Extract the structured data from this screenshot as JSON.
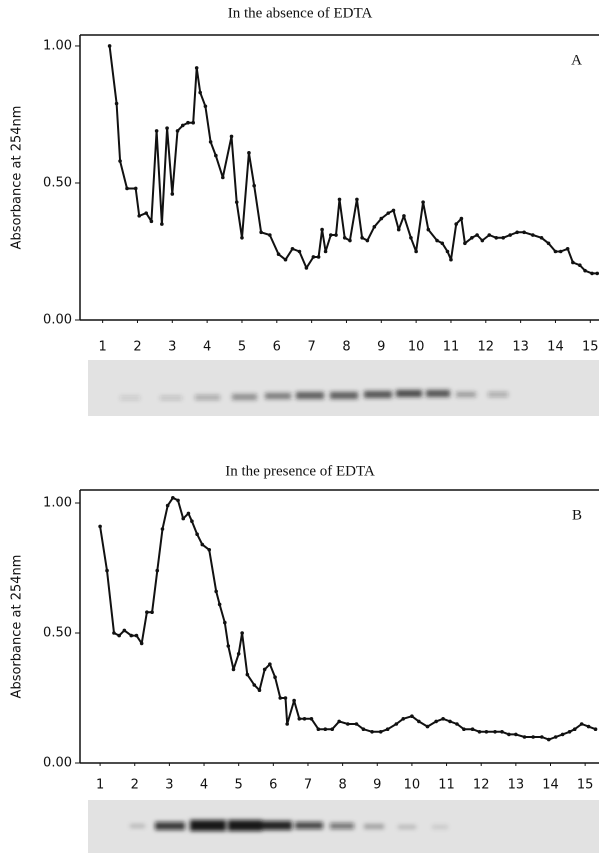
{
  "chart_data": [
    {
      "type": "line",
      "title": "In the absence of EDTA",
      "annotation": "A",
      "y_label": "Absorbance at 254nm",
      "x": [
        1.2,
        1.4,
        1.5,
        1.7,
        1.95,
        2.05,
        2.25,
        2.4,
        2.55,
        2.7,
        2.85,
        3.0,
        3.15,
        3.3,
        3.45,
        3.6,
        3.7,
        3.8,
        3.95,
        4.1,
        4.25,
        4.45,
        4.7,
        4.85,
        5.0,
        5.2,
        5.35,
        5.55,
        5.8,
        6.05,
        6.25,
        6.45,
        6.65,
        6.85,
        7.05,
        7.2,
        7.3,
        7.4,
        7.55,
        7.7,
        7.8,
        7.95,
        8.1,
        8.3,
        8.45,
        8.6,
        8.8,
        9.0,
        9.2,
        9.35,
        9.5,
        9.65,
        9.85,
        10.0,
        10.2,
        10.35,
        10.6,
        10.75,
        10.9,
        11.0,
        11.15,
        11.3,
        11.4,
        11.6,
        11.75,
        11.9,
        12.1,
        12.3,
        12.5,
        12.7,
        12.9,
        13.1,
        13.35,
        13.6,
        13.8,
        14.0,
        14.15,
        14.35,
        14.5,
        14.7,
        14.85,
        15.05,
        15.2
      ],
      "values": [
        1.0,
        0.79,
        0.58,
        0.48,
        0.48,
        0.38,
        0.39,
        0.36,
        0.69,
        0.35,
        0.7,
        0.46,
        0.69,
        0.71,
        0.72,
        0.72,
        0.92,
        0.83,
        0.78,
        0.65,
        0.6,
        0.52,
        0.67,
        0.43,
        0.3,
        0.61,
        0.49,
        0.32,
        0.31,
        0.24,
        0.22,
        0.26,
        0.25,
        0.19,
        0.23,
        0.23,
        0.33,
        0.25,
        0.31,
        0.31,
        0.44,
        0.3,
        0.29,
        0.44,
        0.3,
        0.29,
        0.34,
        0.37,
        0.39,
        0.4,
        0.33,
        0.38,
        0.3,
        0.25,
        0.43,
        0.33,
        0.29,
        0.28,
        0.25,
        0.22,
        0.35,
        0.37,
        0.28,
        0.3,
        0.31,
        0.29,
        0.31,
        0.3,
        0.3,
        0.31,
        0.32,
        0.32,
        0.31,
        0.3,
        0.28,
        0.25,
        0.25,
        0.26,
        0.21,
        0.2,
        0.18,
        0.17,
        0.17
      ],
      "color": "#111111",
      "xlim": [
        0.35,
        15.25
      ],
      "xticks": [
        1,
        2,
        3,
        4,
        5,
        6,
        7,
        8,
        9,
        10,
        11,
        12,
        13,
        14,
        15
      ],
      "ylim": [
        0,
        1.04
      ],
      "yticks": [
        {
          "value": 0,
          "label": "0.00"
        },
        {
          "value": 0.5,
          "label": "0.50"
        },
        {
          "value": 1,
          "label": "1.00"
        }
      ]
    },
    {
      "type": "line",
      "title": "In the presence of EDTA",
      "annotation": "B",
      "y_label": "Absorbance at 254nm",
      "x": [
        1.0,
        1.2,
        1.4,
        1.55,
        1.7,
        1.9,
        2.05,
        2.2,
        2.35,
        2.5,
        2.65,
        2.8,
        2.95,
        3.1,
        3.25,
        3.4,
        3.55,
        3.65,
        3.8,
        3.95,
        4.15,
        4.35,
        4.45,
        4.6,
        4.7,
        4.85,
        5.0,
        5.1,
        5.25,
        5.45,
        5.6,
        5.75,
        5.9,
        6.05,
        6.2,
        6.35,
        6.4,
        6.6,
        6.75,
        6.9,
        7.1,
        7.3,
        7.5,
        7.7,
        7.9,
        8.15,
        8.4,
        8.6,
        8.85,
        9.1,
        9.3,
        9.55,
        9.75,
        10.0,
        10.2,
        10.45,
        10.7,
        10.9,
        11.1,
        11.3,
        11.5,
        11.75,
        11.95,
        12.15,
        12.4,
        12.6,
        12.8,
        13.0,
        13.25,
        13.5,
        13.75,
        13.95,
        14.15,
        14.35,
        14.55,
        14.7,
        14.9,
        15.1,
        15.3
      ],
      "values": [
        0.91,
        0.74,
        0.5,
        0.49,
        0.51,
        0.49,
        0.49,
        0.46,
        0.58,
        0.58,
        0.74,
        0.9,
        0.99,
        1.02,
        1.01,
        0.94,
        0.96,
        0.93,
        0.88,
        0.84,
        0.82,
        0.66,
        0.61,
        0.54,
        0.45,
        0.36,
        0.42,
        0.5,
        0.34,
        0.3,
        0.28,
        0.36,
        0.38,
        0.33,
        0.25,
        0.25,
        0.15,
        0.24,
        0.17,
        0.17,
        0.17,
        0.13,
        0.13,
        0.13,
        0.16,
        0.15,
        0.15,
        0.13,
        0.12,
        0.12,
        0.13,
        0.15,
        0.17,
        0.18,
        0.16,
        0.14,
        0.16,
        0.17,
        0.16,
        0.15,
        0.13,
        0.13,
        0.12,
        0.12,
        0.12,
        0.12,
        0.11,
        0.11,
        0.1,
        0.1,
        0.1,
        0.09,
        0.1,
        0.11,
        0.12,
        0.13,
        0.15,
        0.14,
        0.13
      ],
      "color": "#111111",
      "xlim": [
        0.42,
        15.4
      ],
      "xticks": [
        1,
        2,
        3,
        4,
        5,
        6,
        7,
        8,
        9,
        10,
        11,
        12,
        13,
        14,
        15
      ],
      "ylim": [
        0,
        1.05
      ],
      "yticks": [
        {
          "value": 0,
          "label": "0.00"
        },
        {
          "value": 0.5,
          "label": "0.50"
        },
        {
          "value": 1,
          "label": "1.00"
        }
      ]
    }
  ]
}
